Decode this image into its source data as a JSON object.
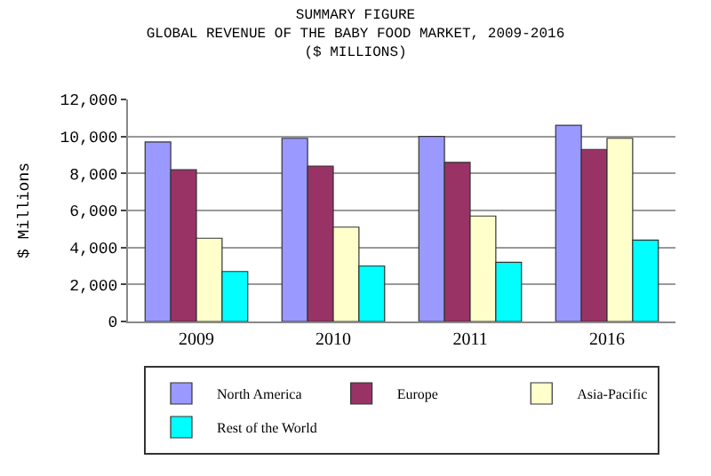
{
  "chart_data": {
    "type": "bar",
    "title": "SUMMARY FIGURE\nGLOBAL REVENUE OF THE BABY FOOD MARKET, 2009-2016\n($ MILLIONS)",
    "ylabel": "$ Millions",
    "categories": [
      "2009",
      "2010",
      "2011",
      "2016"
    ],
    "series": [
      {
        "name": "North America",
        "color": "#9999ff",
        "values": [
          9700,
          9900,
          10000,
          10600
        ]
      },
      {
        "name": "Europe",
        "color": "#993366",
        "values": [
          8200,
          8400,
          8600,
          9300
        ]
      },
      {
        "name": "Asia-Pacific",
        "color": "#ffffcc",
        "values": [
          4500,
          5100,
          5700,
          9900
        ]
      },
      {
        "name": "Rest of the World",
        "color": "#00ffff",
        "values": [
          2700,
          3000,
          3200,
          4400
        ]
      }
    ],
    "ylim": [
      0,
      12000
    ],
    "yticks": [
      {
        "value": 0,
        "label": "0"
      },
      {
        "value": 2000,
        "label": "2,000"
      },
      {
        "value": 4000,
        "label": "4,000"
      },
      {
        "value": 6000,
        "label": "6,000"
      },
      {
        "value": 8000,
        "label": "8,000"
      },
      {
        "value": 10000,
        "label": "10,000"
      },
      {
        "value": 12000,
        "label": "12,000"
      }
    ],
    "grid": "y",
    "legend": "bottom"
  }
}
